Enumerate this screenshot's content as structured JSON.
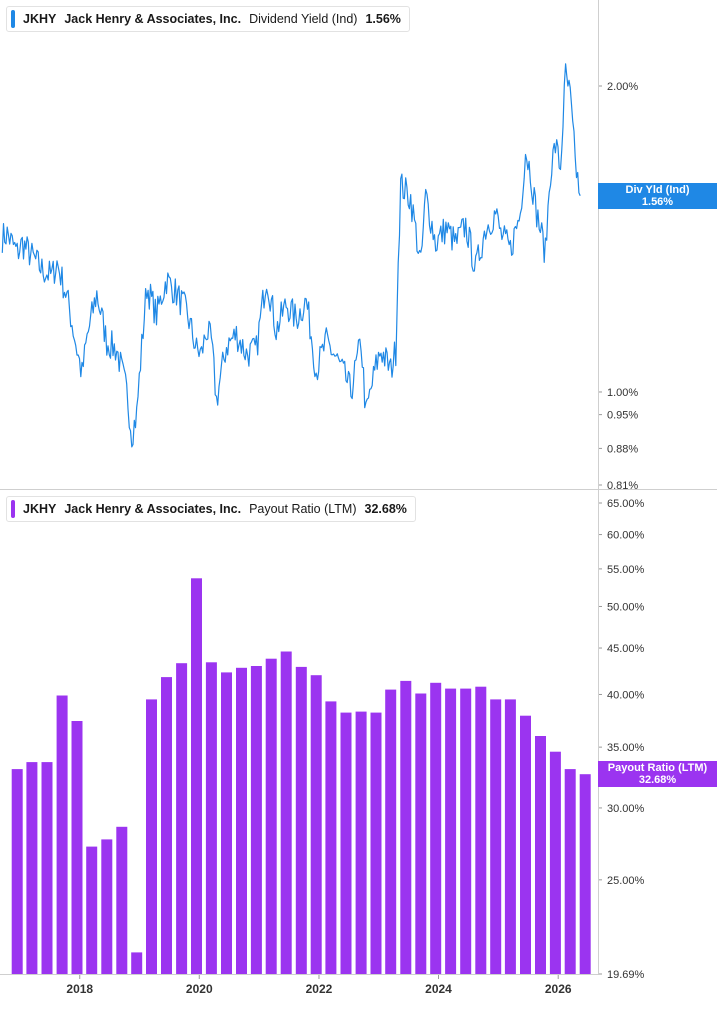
{
  "top_panel": {
    "legend": {
      "ticker": "JKHY",
      "company": "Jack Henry & Associates, Inc.",
      "metric": "Dividend Yield (Ind)",
      "value": "1.56%"
    },
    "tag": {
      "label": "Div Yld (Ind)",
      "value": "1.56%"
    },
    "color": "#1f88e5"
  },
  "bottom_panel": {
    "legend": {
      "ticker": "JKHY",
      "company": "Jack Henry & Associates, Inc.",
      "metric": "Payout Ratio (LTM)",
      "value": "32.68%"
    },
    "tag": {
      "label": "Payout Ratio (LTM)",
      "value": "32.68%"
    },
    "color": "#9b34f0"
  },
  "chart_data": [
    {
      "type": "line",
      "series_name": "Dividend Yield (Ind)",
      "y_unit": "%",
      "yscale": "log",
      "ylim": [
        0.81,
        2.12
      ],
      "y_tick_labels": [
        "2.00%",
        "1.00%",
        "0.95%",
        "0.88%",
        "0.81%"
      ],
      "y_tick_values": [
        2.0,
        1.0,
        0.95,
        0.88,
        0.81
      ],
      "xlim": [
        "2016-09",
        "2026-09"
      ],
      "x": [
        "2016-09",
        "2016-10",
        "2016-12",
        "2017-01",
        "2017-03",
        "2017-05",
        "2017-07",
        "2017-08",
        "2017-10",
        "2017-12",
        "2018-01",
        "2018-02",
        "2018-04",
        "2018-06",
        "2018-08",
        "2018-10",
        "2018-11",
        "2018-12",
        "2019-02",
        "2019-04",
        "2019-06",
        "2019-08",
        "2019-10",
        "2019-12",
        "2020-01",
        "2020-02",
        "2020-03",
        "2020-04",
        "2020-06",
        "2020-08",
        "2020-10",
        "2020-12",
        "2021-02",
        "2021-04",
        "2021-06",
        "2021-08",
        "2021-10",
        "2021-12",
        "2022-02",
        "2022-04",
        "2022-06",
        "2022-07",
        "2022-09",
        "2022-10",
        "2022-12",
        "2023-01",
        "2023-03",
        "2023-04",
        "2023-05",
        "2023-07",
        "2023-09",
        "2023-10",
        "2023-12",
        "2024-02",
        "2024-04",
        "2024-06",
        "2024-08",
        "2024-10",
        "2024-12",
        "2025-01",
        "2025-03",
        "2025-05",
        "2025-06",
        "2025-07",
        "2025-08",
        "2025-10",
        "2025-11",
        "2025-12",
        "2026-01",
        "2026-02",
        "2026-03",
        "2026-04",
        "2026-05"
      ],
      "values": [
        1.42,
        1.43,
        1.37,
        1.4,
        1.36,
        1.32,
        1.3,
        1.34,
        1.24,
        1.1,
        1.04,
        1.13,
        1.25,
        1.12,
        1.1,
        1.0,
        0.91,
        0.95,
        1.27,
        1.19,
        1.29,
        1.25,
        1.2,
        1.1,
        1.09,
        1.15,
        1.12,
        0.98,
        1.11,
        1.14,
        1.09,
        1.1,
        1.3,
        1.15,
        1.22,
        1.18,
        1.23,
        1.05,
        1.12,
        1.08,
        1.03,
        1.0,
        1.12,
        0.95,
        1.06,
        1.1,
        1.05,
        1.1,
        1.6,
        1.55,
        1.33,
        1.56,
        1.4,
        1.45,
        1.4,
        1.46,
        1.32,
        1.45,
        1.5,
        1.43,
        1.38,
        1.5,
        1.73,
        1.65,
        1.52,
        1.37,
        1.65,
        1.75,
        1.66,
        2.05,
        1.95,
        1.68,
        1.56
      ],
      "last_value": 1.56
    },
    {
      "type": "bar",
      "series_name": "Payout Ratio (LTM)",
      "y_unit": "%",
      "yscale": "log",
      "ylim": [
        19.69,
        65.0
      ],
      "y_tick_labels": [
        "65.00%",
        "60.00%",
        "55.00%",
        "50.00%",
        "45.00%",
        "40.00%",
        "35.00%",
        "30.00%",
        "25.00%",
        "19.69%"
      ],
      "y_tick_values": [
        65.0,
        60.0,
        55.0,
        50.0,
        45.0,
        40.0,
        35.0,
        30.0,
        25.0,
        19.69
      ],
      "xlim": [
        "2016-09",
        "2026-09"
      ],
      "x_tick_labels": [
        "2018",
        "2020",
        "2022",
        "2024",
        "2026"
      ],
      "x": [
        "2016-12",
        "2017-03",
        "2017-06",
        "2017-09",
        "2017-12",
        "2018-03",
        "2018-06",
        "2018-09",
        "2018-12",
        "2019-03",
        "2019-06",
        "2019-09",
        "2019-12",
        "2020-03",
        "2020-06",
        "2020-09",
        "2020-12",
        "2021-03",
        "2021-06",
        "2021-09",
        "2021-12",
        "2022-03",
        "2022-06",
        "2022-09",
        "2022-12",
        "2023-03",
        "2023-06",
        "2023-09",
        "2023-12",
        "2024-03",
        "2024-06",
        "2024-09",
        "2024-12",
        "2025-03",
        "2025-06",
        "2025-09",
        "2025-12",
        "2026-03",
        "2026-06"
      ],
      "values": [
        33.1,
        33.7,
        33.7,
        39.9,
        37.4,
        27.2,
        27.7,
        28.6,
        20.8,
        39.5,
        41.8,
        43.3,
        53.7,
        43.4,
        42.3,
        42.8,
        43.0,
        43.8,
        44.6,
        42.9,
        42.0,
        39.3,
        38.2,
        38.3,
        38.2,
        40.5,
        41.4,
        40.1,
        41.2,
        40.6,
        40.6,
        40.8,
        39.5,
        39.5,
        37.9,
        36.0,
        34.6,
        33.1,
        32.68
      ],
      "last_value": 32.68
    }
  ]
}
